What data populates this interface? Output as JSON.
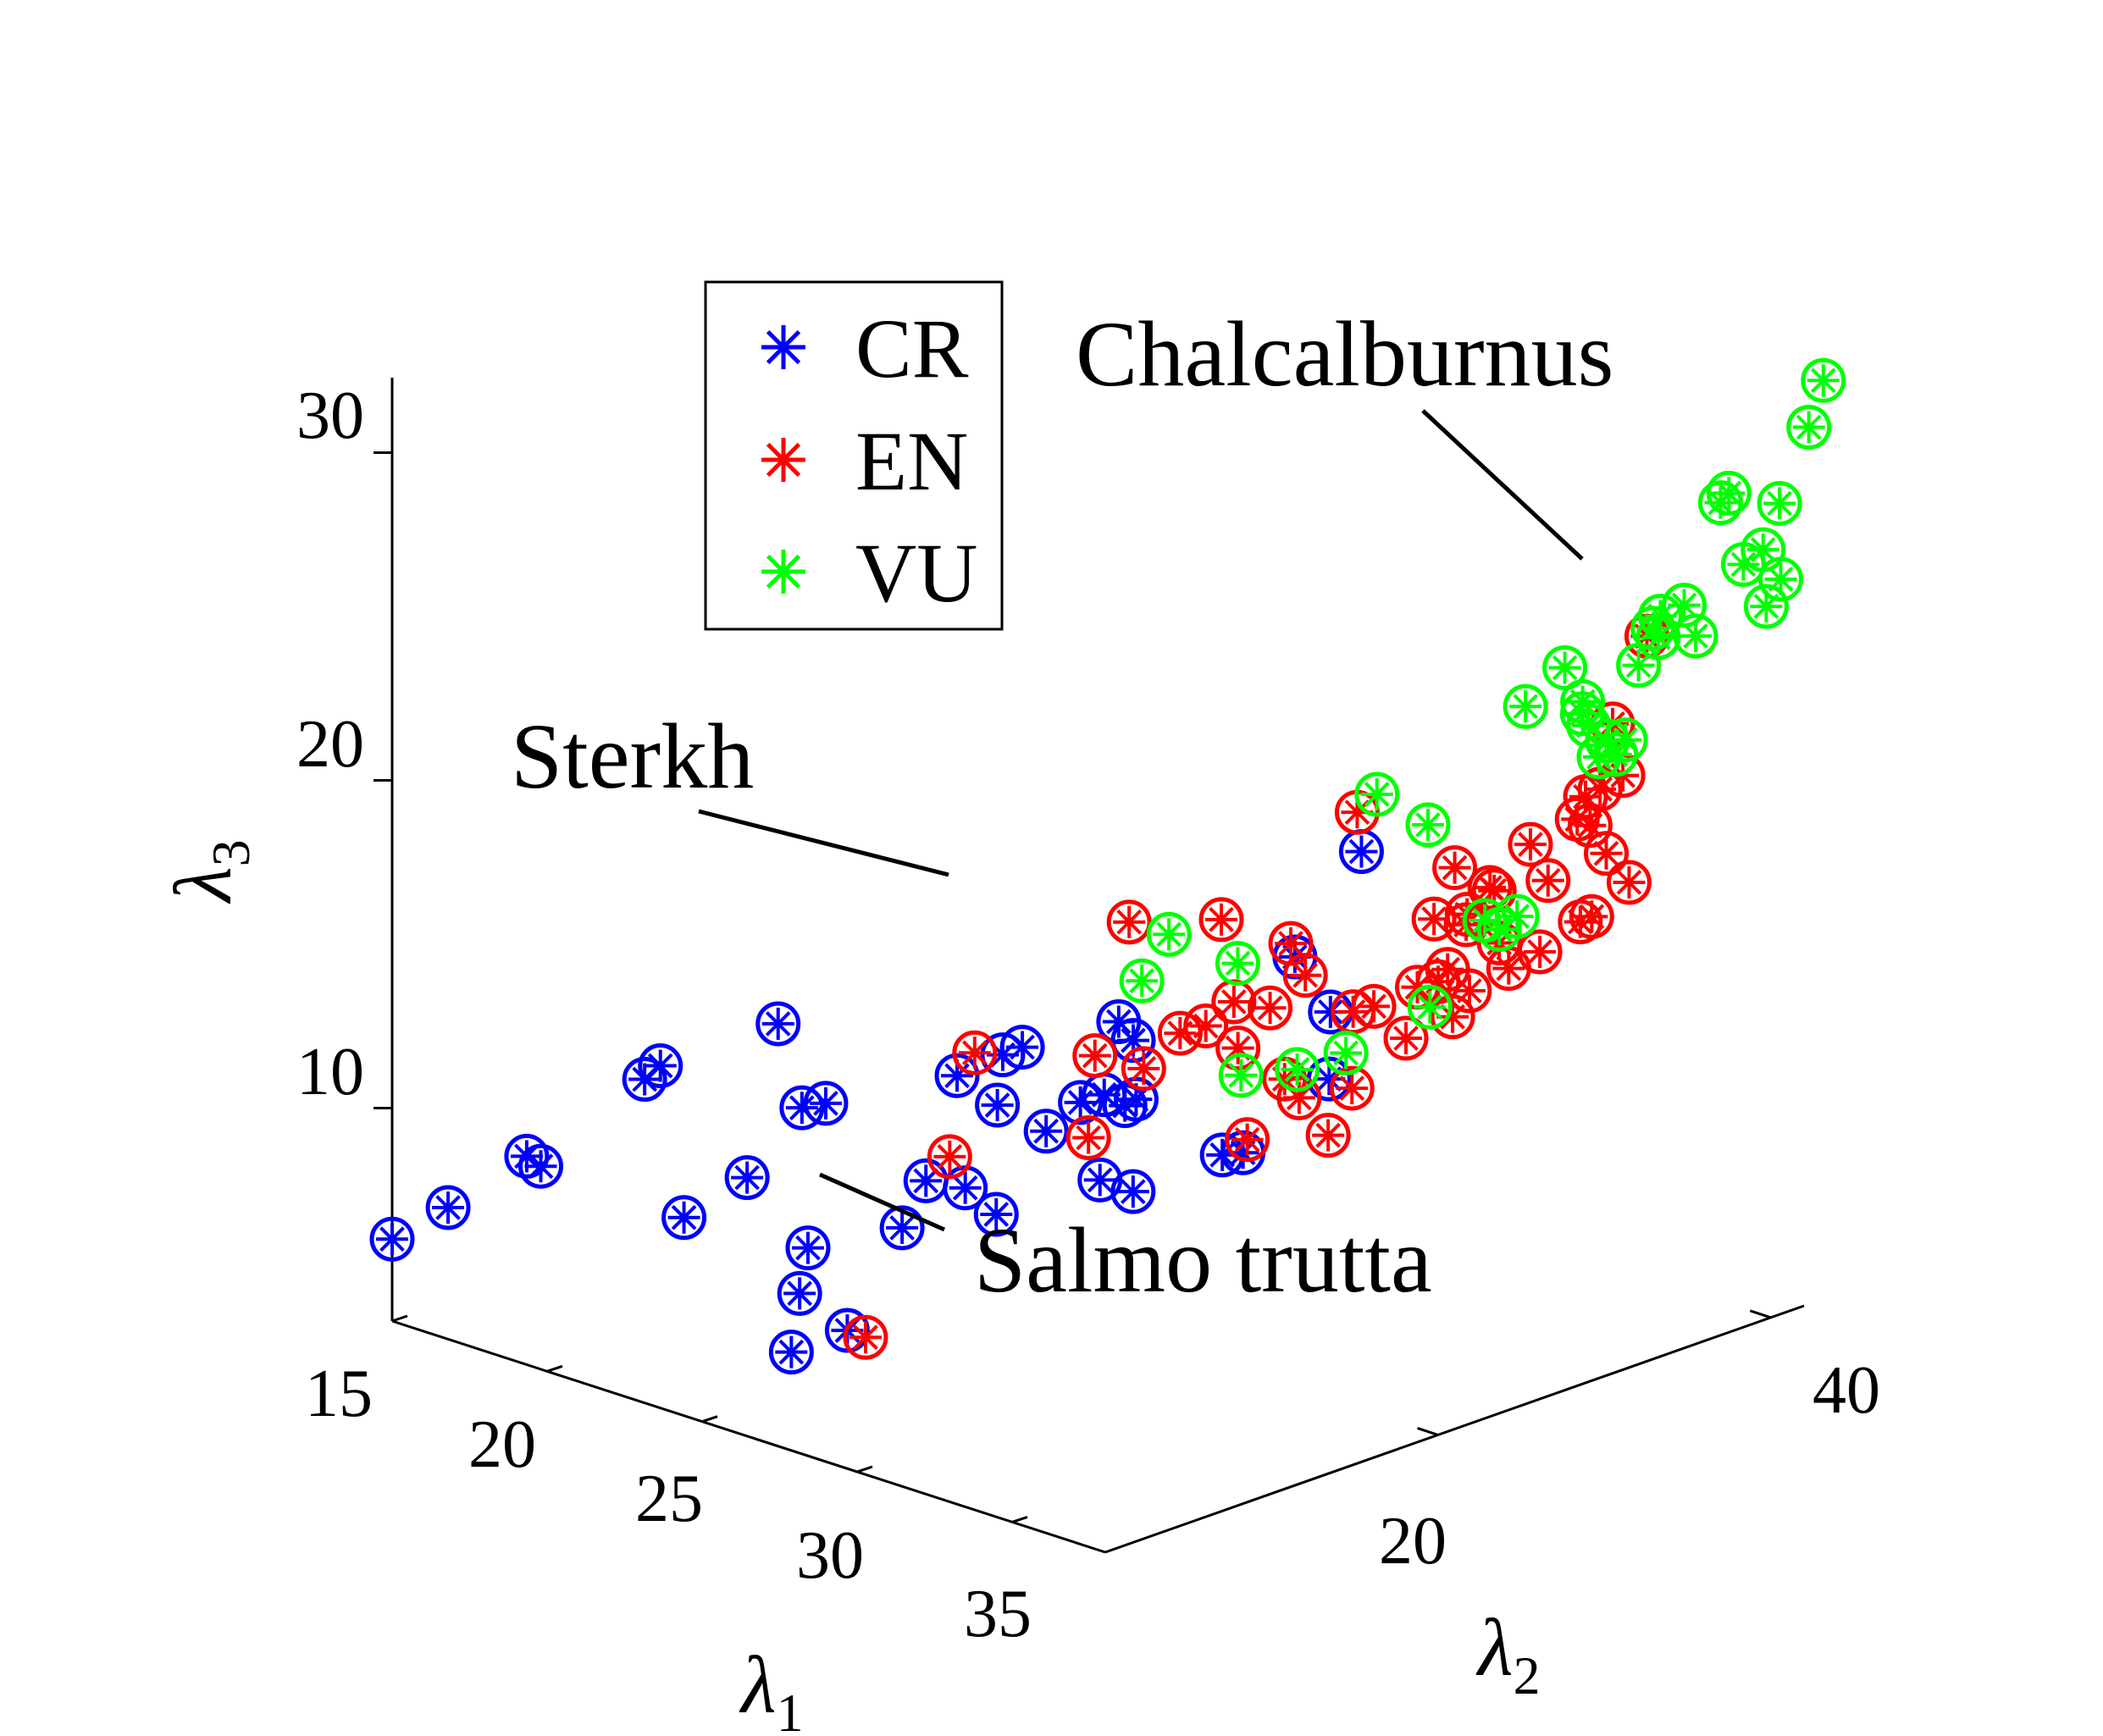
{
  "chart_data": {
    "type": "scatter3d",
    "title": "",
    "axes": {
      "x": {
        "label": "λ",
        "subscript": "1",
        "ticks": [
          15,
          20,
          25,
          30,
          35
        ],
        "range": [
          15,
          38
        ]
      },
      "y": {
        "label": "λ",
        "subscript": "2",
        "ticks": [
          20,
          40
        ],
        "range": [
          0,
          42
        ]
      },
      "z": {
        "label": "λ",
        "subscript": "3",
        "ticks": [
          10,
          20,
          30
        ],
        "range": [
          3.5,
          30.5
        ]
      }
    },
    "legend": {
      "position": "top-center",
      "entries": [
        {
          "key": "CR",
          "label": "CR",
          "color": "#0000ff"
        },
        {
          "key": "EN",
          "label": "EN",
          "color": "#ff0000"
        },
        {
          "key": "VU",
          "label": "VU",
          "color": "#00ff00"
        }
      ]
    },
    "annotations": [
      {
        "label": "Chalcalburnus",
        "points_to": [
          37.5,
          33.5,
          25.3
        ]
      },
      {
        "label": "Sterkh",
        "points_to": [
          30.6,
          16.0,
          15.8
        ]
      },
      {
        "label": "Salmo trutta",
        "points_to": [
          29.2,
          2.0,
          7.0
        ]
      }
    ],
    "series": [
      {
        "name": "CR",
        "color": "#0000ff",
        "points": [
          [
            15.0,
            0.0,
            6.0
          ],
          [
            16.0,
            1.5,
            7.0
          ],
          [
            18.0,
            2.5,
            9.0
          ],
          [
            18.4,
            2.6,
            8.8
          ],
          [
            21.0,
            4.0,
            12.0
          ],
          [
            21.4,
            4.2,
            12.5
          ],
          [
            22.0,
            4.5,
            8.0
          ],
          [
            23.5,
            5.5,
            9.5
          ],
          [
            24.5,
            5.5,
            14.5
          ],
          [
            25.0,
            6.0,
            12.0
          ],
          [
            25.5,
            6.5,
            12.2
          ],
          [
            26.0,
            4.5,
            8.3
          ],
          [
            26.0,
            3.5,
            5.3
          ],
          [
            26.0,
            4.0,
            7.0
          ],
          [
            27.0,
            5.0,
            6.0
          ],
          [
            28.5,
            5.5,
            9.5
          ],
          [
            29.0,
            6.0,
            11.0
          ],
          [
            29.2,
            7.5,
            14.0
          ],
          [
            30.0,
            6.5,
            11.0
          ],
          [
            30.5,
            9.0,
            15.0
          ],
          [
            31.0,
            9.5,
            12.5
          ],
          [
            31.0,
            6.5,
            10.5
          ],
          [
            31.3,
            11.0,
            13.2
          ],
          [
            31.8,
            11.5,
            13.5
          ],
          [
            32.2,
            12.0,
            13.2
          ],
          [
            32.4,
            12.3,
            13.4
          ],
          [
            32.0,
            12.0,
            15.7
          ],
          [
            32.2,
            12.5,
            15.1
          ],
          [
            34.0,
            14.5,
            11.8
          ],
          [
            34.4,
            15.0,
            11.9
          ],
          [
            35.0,
            17.0,
            17.7
          ],
          [
            35.3,
            18.5,
            13.8
          ],
          [
            35.0,
            21.0,
            20.2
          ],
          [
            34.0,
            21.0,
            15.0
          ],
          [
            33.0,
            11.0,
            11.0
          ],
          [
            32.2,
            10.5,
            11.2
          ],
          [
            30.5,
            7.5,
            13.5
          ],
          [
            29.6,
            9.5,
            14.4
          ]
        ]
      },
      {
        "name": "EN",
        "color": "#ff0000",
        "points": [
          [
            29.2,
            2.0,
            7.0
          ],
          [
            29.5,
            8.0,
            14.7
          ],
          [
            29.5,
            6.5,
            11.8
          ],
          [
            32.0,
            13.5,
            14.0
          ],
          [
            31.5,
            11.5,
            14.6
          ],
          [
            31.4,
            11.3,
            12.1
          ],
          [
            32.8,
            14.2,
            15.2
          ],
          [
            33.2,
            15.0,
            15.4
          ],
          [
            33.7,
            16.0,
            14.7
          ],
          [
            34.2,
            17.0,
            15.9
          ],
          [
            34.6,
            17.5,
            17.9
          ],
          [
            34.8,
            18.0,
            16.9
          ],
          [
            34.4,
            17.5,
            13.7
          ],
          [
            34.6,
            18.0,
            13.1
          ],
          [
            34.0,
            16.0,
            12.0
          ],
          [
            35.0,
            19.0,
            11.9
          ],
          [
            35.5,
            19.5,
            13.4
          ],
          [
            35.0,
            20.5,
            15.4
          ],
          [
            35.4,
            21.0,
            15.6
          ],
          [
            35.4,
            20.0,
            21.7
          ],
          [
            33.7,
            15.0,
            18.8
          ],
          [
            31.8,
            13.0,
            18.5
          ],
          [
            36.0,
            22.5,
            16.1
          ],
          [
            36.4,
            23.0,
            16.3
          ],
          [
            36.6,
            23.2,
            16.7
          ],
          [
            36.6,
            23.5,
            15.2
          ],
          [
            35.9,
            22.0,
            14.6
          ],
          [
            36.4,
            24.0,
            19.6
          ],
          [
            36.0,
            23.5,
            18.0
          ],
          [
            36.8,
            24.0,
            18.3
          ],
          [
            36.5,
            24.5,
            17.8
          ],
          [
            37.3,
            25.0,
            17.4
          ],
          [
            37.5,
            26.5,
            20.2
          ],
          [
            37.0,
            25.0,
            19.0
          ],
          [
            37.8,
            27.0,
            19.1
          ],
          [
            37.0,
            28.0,
            16.5
          ],
          [
            37.5,
            29.5,
            17.3
          ],
          [
            37.6,
            30.0,
            17.4
          ],
          [
            37.8,
            30.5,
            19.3
          ],
          [
            38.0,
            31.5,
            18.3
          ],
          [
            37.4,
            30.0,
            21.0
          ],
          [
            37.6,
            30.5,
            21.2
          ],
          [
            37.8,
            31.5,
            21.5
          ],
          [
            37.2,
            32.0,
            22.8
          ],
          [
            37.4,
            29.5,
            20.4
          ],
          [
            37.6,
            29.9,
            20.2
          ],
          [
            36.6,
            26.0,
            18.6
          ],
          [
            36.8,
            26.5,
            16.2
          ],
          [
            35.8,
            26.0,
            15.3
          ],
          [
            33.3,
            16.5,
            15.9
          ],
          [
            37.5,
            33.5,
            25.3
          ]
        ]
      },
      {
        "name": "VU",
        "color": "#00ff00",
        "points": [
          [
            30.6,
            16.0,
            15.8
          ],
          [
            30.4,
            18.0,
            16.8
          ],
          [
            34.5,
            14.5,
            17.8
          ],
          [
            33.8,
            16.0,
            13.9
          ],
          [
            35.5,
            21.0,
            22.1
          ],
          [
            35.0,
            25.0,
            20.3
          ],
          [
            36.5,
            26.5,
            17.3
          ],
          [
            36.8,
            27.0,
            17.7
          ],
          [
            36.0,
            29.0,
            23.5
          ],
          [
            37.0,
            29.5,
            24.9
          ],
          [
            37.5,
            30.0,
            23.2
          ],
          [
            37.3,
            30.0,
            23.5
          ],
          [
            37.2,
            30.2,
            23.8
          ],
          [
            37.3,
            31.5,
            22.4
          ],
          [
            37.3,
            32.0,
            21.9
          ],
          [
            37.5,
            33.0,
            24.5
          ],
          [
            37.7,
            33.5,
            25.6
          ],
          [
            38.0,
            35.5,
            25.1
          ],
          [
            37.9,
            35.0,
            26.1
          ],
          [
            37.3,
            31.0,
            22.0
          ],
          [
            37.4,
            32.4,
            22.3
          ],
          [
            36.3,
            26.0,
            17.6
          ],
          [
            35.6,
            24.0,
            15.1
          ],
          [
            34.5,
            21.0,
            13.9
          ],
          [
            34.0,
            19.0,
            13.6
          ],
          [
            38.0,
            37.0,
            28.9
          ],
          [
            38.0,
            37.5,
            29.1
          ],
          [
            38.2,
            38.0,
            26.9
          ],
          [
            38.6,
            39.5,
            26.3
          ],
          [
            38.4,
            39.0,
            25.5
          ],
          [
            38.3,
            39.0,
            27.2
          ],
          [
            38.4,
            39.8,
            28.5
          ],
          [
            38.7,
            41.0,
            30.7
          ],
          [
            38.9,
            41.5,
            32.1
          ],
          [
            37.6,
            34.0,
            25.2
          ],
          [
            37.4,
            34.5,
            25.7
          ]
        ]
      }
    ]
  }
}
